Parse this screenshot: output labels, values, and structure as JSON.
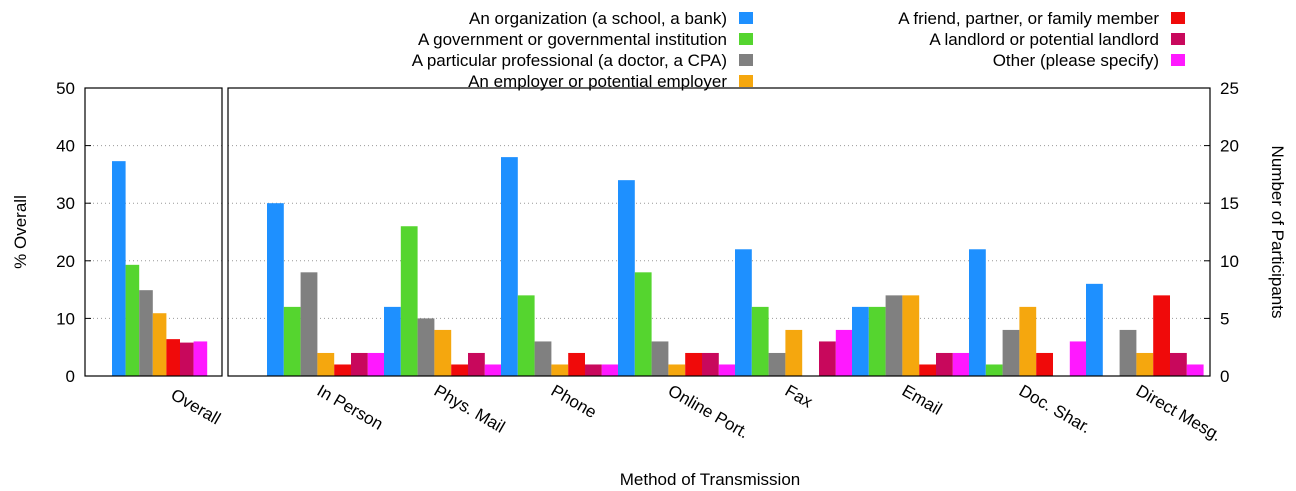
{
  "chart_data": {
    "type": "bar",
    "xlabel": "Method of Transmission",
    "ylabel_left": "% Overall",
    "ylabel_right": "Number of Participants",
    "ylim_left": [
      0,
      50
    ],
    "ylim_right": [
      0,
      25
    ],
    "left_ticks": [
      "0",
      "10",
      "20",
      "30",
      "40",
      "50"
    ],
    "right_ticks": [
      "0",
      "5",
      "10",
      "15",
      "20",
      "25"
    ],
    "grid": true,
    "legend_position": "top",
    "series": [
      {
        "name": "An organization (a school, a bank)",
        "color": "#1e90ff"
      },
      {
        "name": "A government or governmental institution",
        "color": "#55d52f"
      },
      {
        "name": "A particular professional (a doctor, a CPA)",
        "color": "#808080"
      },
      {
        "name": "An employer or potential employer",
        "color": "#f5a70e"
      },
      {
        "name": "A friend, partner, or family member",
        "color": "#f00a0a"
      },
      {
        "name": "A landlord or potential landlord",
        "color": "#c8085c"
      },
      {
        "name": "Other (please specify)",
        "color": "#ff19ff"
      }
    ],
    "overall_panel": {
      "category": "Overall",
      "axis": "% Overall",
      "values": [
        37.3,
        19.3,
        14.9,
        10.9,
        6.4,
        5.8,
        6.0
      ]
    },
    "participants_panel": {
      "axis": "Number of Participants",
      "categories": [
        "In Person",
        "Phys. Mail",
        "Phone",
        "Online Port.",
        "Fax",
        "Email",
        "Doc. Shar.",
        "Direct Mesg."
      ],
      "values": [
        [
          15,
          6,
          9,
          2,
          1,
          2,
          2
        ],
        [
          6,
          13,
          5,
          4,
          1,
          2,
          1
        ],
        [
          19,
          7,
          3,
          1,
          2,
          1,
          1
        ],
        [
          17,
          9,
          3,
          1,
          2,
          2,
          1
        ],
        [
          11,
          6,
          2,
          4,
          0,
          3,
          4
        ],
        [
          6,
          6,
          7,
          7,
          1,
          2,
          2
        ],
        [
          11,
          1,
          4,
          6,
          2,
          0,
          3
        ],
        [
          8,
          0,
          4,
          2,
          7,
          2,
          1
        ]
      ]
    }
  }
}
